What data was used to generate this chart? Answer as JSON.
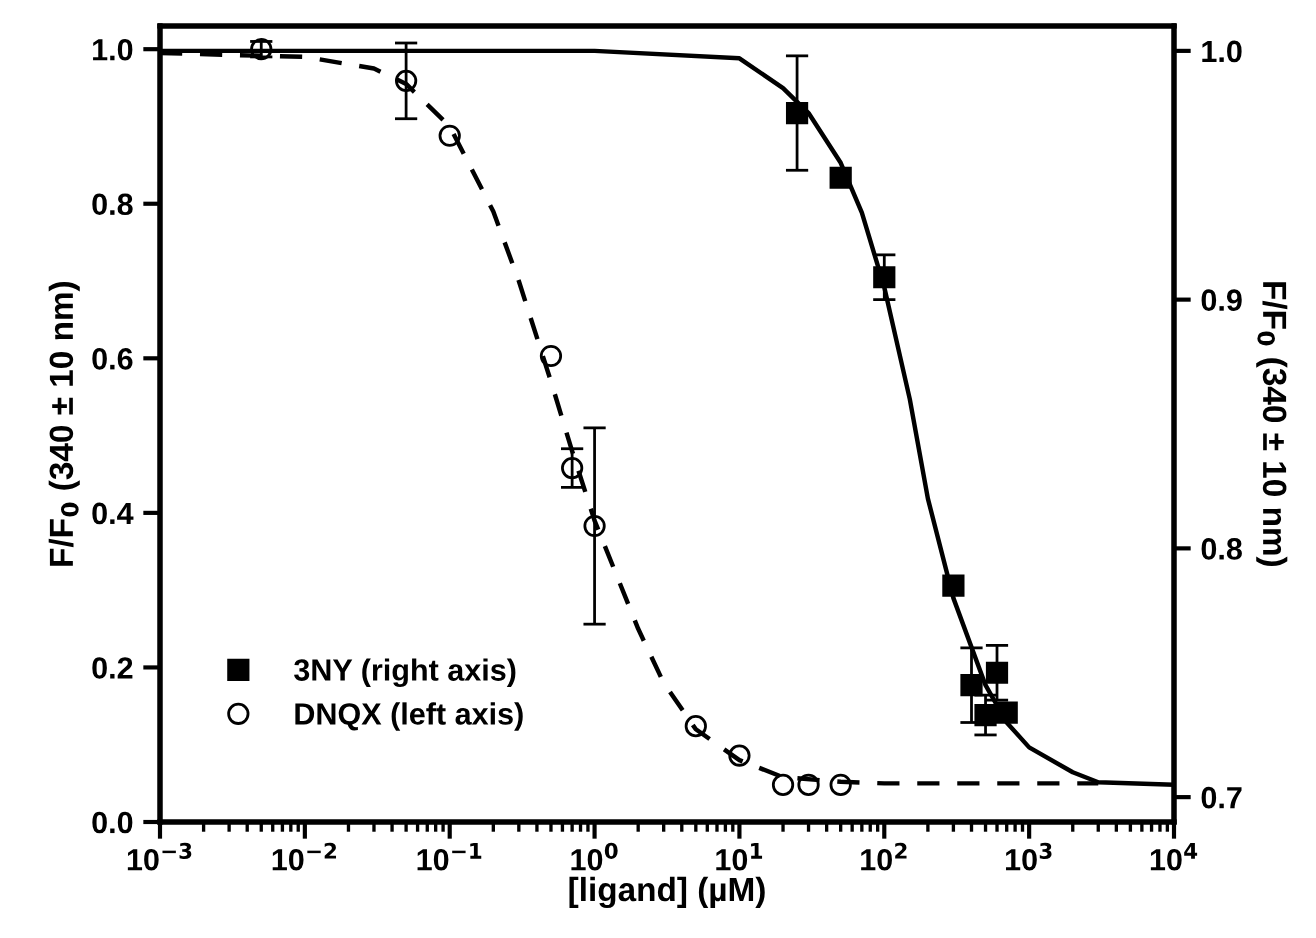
{
  "chart_data": {
    "type": "scatter",
    "log": "x",
    "xlabel": "[ligand] (µM)",
    "ylabel": "F/F$_{0}$ (340 ± 10 nm)",
    "y2label": "F/F$_{0}$ (340 ± 10 nm)",
    "xlim": [
      0.001,
      10000
    ],
    "ylim": [
      0,
      1.03
    ],
    "y2lim": [
      0.69,
      1.01
    ],
    "xticks": [
      {
        "value": 0.001,
        "label": "10$^{−3}$"
      },
      {
        "value": 0.01,
        "label": "10$^{−2}$"
      },
      {
        "value": 0.1,
        "label": "10$^{−1}$"
      },
      {
        "value": 1,
        "label": "10$^{0}$"
      },
      {
        "value": 10,
        "label": "10$^{1}$"
      },
      {
        "value": 100,
        "label": "10$^{2}$"
      },
      {
        "value": 1000,
        "label": "10$^{3}$"
      },
      {
        "value": 10000,
        "label": "10$^{4}$"
      }
    ],
    "yticks": [
      {
        "value": 0,
        "label": "0.0"
      },
      0.2,
      0.4,
      0.6,
      0.8,
      {
        "value": 1,
        "label": "1.0"
      }
    ],
    "y2ticks": [
      0.7,
      0.8,
      0.9,
      {
        "value": 1,
        "label": "1.0"
      }
    ],
    "grid": false,
    "legend": "bottom left",
    "series": [
      {
        "name": "3NY (right axis)",
        "axis": "y2",
        "marker": "square",
        "color": "#000000",
        "x": [
          25,
          50,
          100,
          300,
          400,
          500,
          600,
          700
        ],
        "values": [
          0.975,
          0.949,
          0.909,
          0.785,
          0.745,
          0.733,
          0.75,
          0.734
        ],
        "errors": [
          0.023,
          null,
          0.009,
          null,
          0.015,
          0.008,
          0.011,
          null
        ]
      },
      {
        "name": "DNQX (left axis)",
        "marker": "circle",
        "color": "#000000",
        "x": [
          0.005,
          0.05,
          0.1,
          0.5,
          0.7,
          1,
          5,
          10,
          20,
          30,
          50
        ],
        "values": [
          1.0,
          0.959,
          0.888,
          0.603,
          0.458,
          0.383,
          0.124,
          0.086,
          0.048,
          0.048,
          0.048
        ],
        "errors": [
          0.01,
          0.049,
          null,
          null,
          0.025,
          0.127,
          null,
          null,
          null,
          null,
          null
        ]
      },
      {
        "type": "line",
        "axis": "y2",
        "line_style": "solid",
        "color": "#000000",
        "x": [
          0.001,
          1,
          10,
          20,
          30,
          50,
          70,
          100,
          150,
          200,
          300,
          500,
          700,
          1000,
          2000,
          3000,
          10000
        ],
        "values": [
          1.0,
          1.0,
          0.997,
          0.985,
          0.975,
          0.955,
          0.935,
          0.905,
          0.86,
          0.82,
          0.78,
          0.745,
          0.73,
          0.72,
          0.71,
          0.706,
          0.705
        ]
      },
      {
        "type": "line",
        "line_style": "dashed",
        "color": "#000000",
        "x": [
          0.001,
          0.01,
          0.03,
          0.05,
          0.1,
          0.2,
          0.3,
          0.5,
          0.7,
          1,
          2,
          3,
          5,
          10,
          20,
          50,
          100,
          1000,
          3000
        ],
        "values": [
          0.995,
          0.99,
          0.975,
          0.955,
          0.9,
          0.79,
          0.7,
          0.57,
          0.48,
          0.39,
          0.25,
          0.18,
          0.12,
          0.08,
          0.058,
          0.052,
          0.05,
          0.05,
          0.05
        ]
      }
    ]
  }
}
